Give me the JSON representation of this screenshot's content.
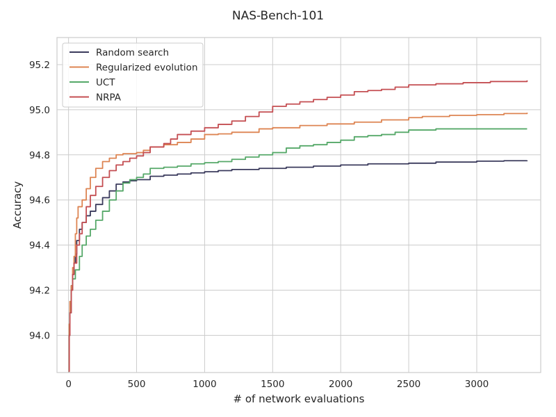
{
  "chart_data": {
    "type": "line",
    "title": "NAS-Bench-101",
    "xlabel": "# of network evaluations",
    "ylabel": "Accuracy",
    "xlim": [
      -85,
      3470
    ],
    "ylim": [
      93.835,
      95.32
    ],
    "xticks": [
      0,
      500,
      1000,
      1500,
      2000,
      2500,
      3000
    ],
    "yticks": [
      94.0,
      94.2,
      94.4,
      94.6,
      94.8,
      95.0,
      95.2
    ],
    "grid": true,
    "legend_position": "top-left",
    "series": [
      {
        "name": "Random search",
        "color": "#3a3a5c",
        "points": [
          [
            0,
            93.84
          ],
          [
            5,
            94.0
          ],
          [
            10,
            94.1
          ],
          [
            20,
            94.22
          ],
          [
            30,
            94.27
          ],
          [
            40,
            94.32
          ],
          [
            50,
            94.36
          ],
          [
            60,
            94.42
          ],
          [
            80,
            94.47
          ],
          [
            100,
            94.5
          ],
          [
            130,
            94.53
          ],
          [
            160,
            94.55
          ],
          [
            200,
            94.58
          ],
          [
            250,
            94.61
          ],
          [
            300,
            94.64
          ],
          [
            350,
            94.67
          ],
          [
            400,
            94.68
          ],
          [
            450,
            94.685
          ],
          [
            500,
            94.69
          ],
          [
            600,
            94.705
          ],
          [
            700,
            94.71
          ],
          [
            800,
            94.715
          ],
          [
            900,
            94.72
          ],
          [
            1000,
            94.725
          ],
          [
            1100,
            94.73
          ],
          [
            1200,
            94.735
          ],
          [
            1400,
            94.74
          ],
          [
            1600,
            94.745
          ],
          [
            1800,
            94.75
          ],
          [
            2000,
            94.755
          ],
          [
            2200,
            94.76
          ],
          [
            2500,
            94.763
          ],
          [
            2700,
            94.768
          ],
          [
            3000,
            94.772
          ],
          [
            3200,
            94.774
          ],
          [
            3370,
            94.775
          ]
        ]
      },
      {
        "name": "Regularized evolution",
        "color": "#dd8452",
        "points": [
          [
            0,
            93.84
          ],
          [
            5,
            94.05
          ],
          [
            10,
            94.15
          ],
          [
            20,
            94.22
          ],
          [
            30,
            94.3
          ],
          [
            40,
            94.35
          ],
          [
            50,
            94.45
          ],
          [
            60,
            94.52
          ],
          [
            70,
            94.57
          ],
          [
            100,
            94.6
          ],
          [
            130,
            94.65
          ],
          [
            160,
            94.7
          ],
          [
            200,
            94.74
          ],
          [
            250,
            94.77
          ],
          [
            300,
            94.785
          ],
          [
            350,
            94.8
          ],
          [
            400,
            94.805
          ],
          [
            500,
            94.81
          ],
          [
            550,
            94.82
          ],
          [
            600,
            94.835
          ],
          [
            700,
            94.845
          ],
          [
            800,
            94.855
          ],
          [
            900,
            94.87
          ],
          [
            1000,
            94.89
          ],
          [
            1100,
            94.893
          ],
          [
            1200,
            94.9
          ],
          [
            1400,
            94.915
          ],
          [
            1500,
            94.92
          ],
          [
            1700,
            94.93
          ],
          [
            1900,
            94.937
          ],
          [
            2100,
            94.945
          ],
          [
            2300,
            94.955
          ],
          [
            2500,
            94.965
          ],
          [
            2600,
            94.97
          ],
          [
            2800,
            94.975
          ],
          [
            3000,
            94.978
          ],
          [
            3200,
            94.983
          ],
          [
            3370,
            94.987
          ]
        ]
      },
      {
        "name": "UCT",
        "color": "#55a868",
        "points": [
          [
            0,
            93.84
          ],
          [
            5,
            94.0
          ],
          [
            10,
            94.1
          ],
          [
            20,
            94.2
          ],
          [
            30,
            94.25
          ],
          [
            50,
            94.29
          ],
          [
            80,
            94.35
          ],
          [
            100,
            94.4
          ],
          [
            130,
            94.44
          ],
          [
            160,
            94.47
          ],
          [
            200,
            94.51
          ],
          [
            250,
            94.55
          ],
          [
            300,
            94.6
          ],
          [
            350,
            94.64
          ],
          [
            400,
            94.675
          ],
          [
            450,
            94.69
          ],
          [
            500,
            94.7
          ],
          [
            550,
            94.715
          ],
          [
            600,
            94.74
          ],
          [
            700,
            94.745
          ],
          [
            800,
            94.75
          ],
          [
            900,
            94.76
          ],
          [
            1000,
            94.765
          ],
          [
            1100,
            94.77
          ],
          [
            1200,
            94.78
          ],
          [
            1300,
            94.79
          ],
          [
            1400,
            94.8
          ],
          [
            1500,
            94.81
          ],
          [
            1600,
            94.83
          ],
          [
            1700,
            94.84
          ],
          [
            1800,
            94.845
          ],
          [
            1900,
            94.855
          ],
          [
            2000,
            94.865
          ],
          [
            2100,
            94.88
          ],
          [
            2200,
            94.885
          ],
          [
            2300,
            94.89
          ],
          [
            2400,
            94.9
          ],
          [
            2500,
            94.91
          ],
          [
            2700,
            94.915
          ],
          [
            3000,
            94.915
          ],
          [
            3370,
            94.915
          ]
        ]
      },
      {
        "name": "NRPA",
        "color": "#c44e52",
        "points": [
          [
            0,
            93.84
          ],
          [
            5,
            94.0
          ],
          [
            10,
            94.1
          ],
          [
            20,
            94.2
          ],
          [
            30,
            94.27
          ],
          [
            40,
            94.32
          ],
          [
            60,
            94.4
          ],
          [
            80,
            94.45
          ],
          [
            100,
            94.5
          ],
          [
            130,
            94.57
          ],
          [
            160,
            94.62
          ],
          [
            200,
            94.66
          ],
          [
            250,
            94.7
          ],
          [
            300,
            94.73
          ],
          [
            350,
            94.755
          ],
          [
            400,
            94.77
          ],
          [
            450,
            94.785
          ],
          [
            500,
            94.795
          ],
          [
            550,
            94.81
          ],
          [
            600,
            94.835
          ],
          [
            700,
            94.85
          ],
          [
            750,
            94.87
          ],
          [
            800,
            94.89
          ],
          [
            900,
            94.905
          ],
          [
            1000,
            94.92
          ],
          [
            1100,
            94.935
          ],
          [
            1200,
            94.95
          ],
          [
            1300,
            94.97
          ],
          [
            1400,
            94.99
          ],
          [
            1500,
            95.015
          ],
          [
            1600,
            95.025
          ],
          [
            1700,
            95.035
          ],
          [
            1800,
            95.045
          ],
          [
            1900,
            95.055
          ],
          [
            2000,
            95.065
          ],
          [
            2100,
            95.08
          ],
          [
            2200,
            95.085
          ],
          [
            2300,
            95.09
          ],
          [
            2400,
            95.1
          ],
          [
            2500,
            95.11
          ],
          [
            2700,
            95.115
          ],
          [
            2900,
            95.12
          ],
          [
            3100,
            95.125
          ],
          [
            3370,
            95.13
          ]
        ]
      }
    ]
  }
}
